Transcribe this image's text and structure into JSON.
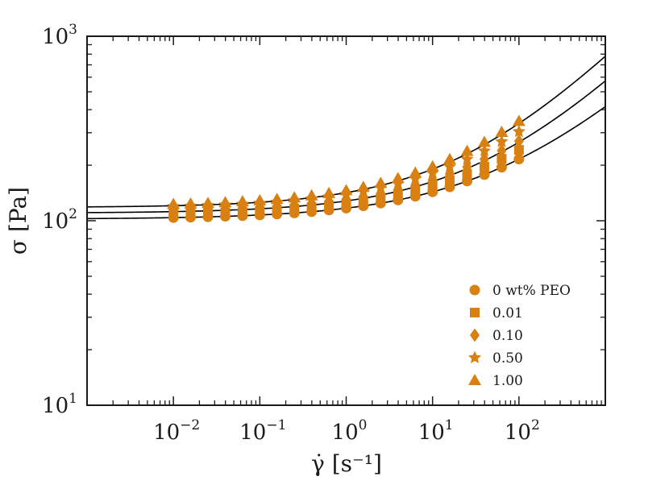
{
  "chart_data": {
    "type": "scatter",
    "title": "",
    "xlabel": "γ̇ [s⁻¹]",
    "ylabel": "σ [Pa]",
    "xscale": "log",
    "yscale": "log",
    "xlim": [
      0.001,
      1000
    ],
    "ylim": [
      10,
      1000
    ],
    "x_ticks": [
      {
        "base": "10",
        "exp": "−2"
      },
      {
        "base": "10",
        "exp": "−1"
      },
      {
        "base": "10",
        "exp": "0"
      },
      {
        "base": "10",
        "exp": "1"
      },
      {
        "base": "10",
        "exp": "2"
      }
    ],
    "y_ticks": [
      {
        "base": "10",
        "exp": "1"
      },
      {
        "base": "10",
        "exp": "2"
      },
      {
        "base": "10",
        "exp": "3"
      }
    ],
    "marker_color": "#d98012",
    "line_color": "#000000",
    "legend_position": "lower-right",
    "shear_rates": [
      0.01,
      0.0158,
      0.0251,
      0.0398,
      0.0631,
      0.1,
      0.158,
      0.251,
      0.398,
      0.631,
      1,
      1.58,
      2.51,
      3.98,
      6.31,
      10,
      15.8,
      25.1,
      39.8,
      63.1,
      100
    ],
    "series": [
      {
        "name": "0 wt% PEO",
        "marker": "circle",
        "tau0": 102,
        "K": 15,
        "n": 0.44
      },
      {
        "name": "0.01",
        "marker": "square",
        "tau0": 107,
        "K": 17,
        "n": 0.45
      },
      {
        "name": "0.10",
        "marker": "diamond",
        "tau0": 112,
        "K": 19,
        "n": 0.46
      },
      {
        "name": "0.50",
        "marker": "star",
        "tau0": 117,
        "K": 22,
        "n": 0.465
      },
      {
        "name": "1.00",
        "marker": "triangle",
        "tau0": 120,
        "K": 26,
        "n": 0.47
      }
    ],
    "fit_lines": [
      {
        "tau0": 102,
        "K": 15,
        "n": 0.44
      },
      {
        "tau0": 110,
        "K": 18,
        "n": 0.47
      },
      {
        "tau0": 118,
        "K": 24,
        "n": 0.48
      }
    ]
  }
}
